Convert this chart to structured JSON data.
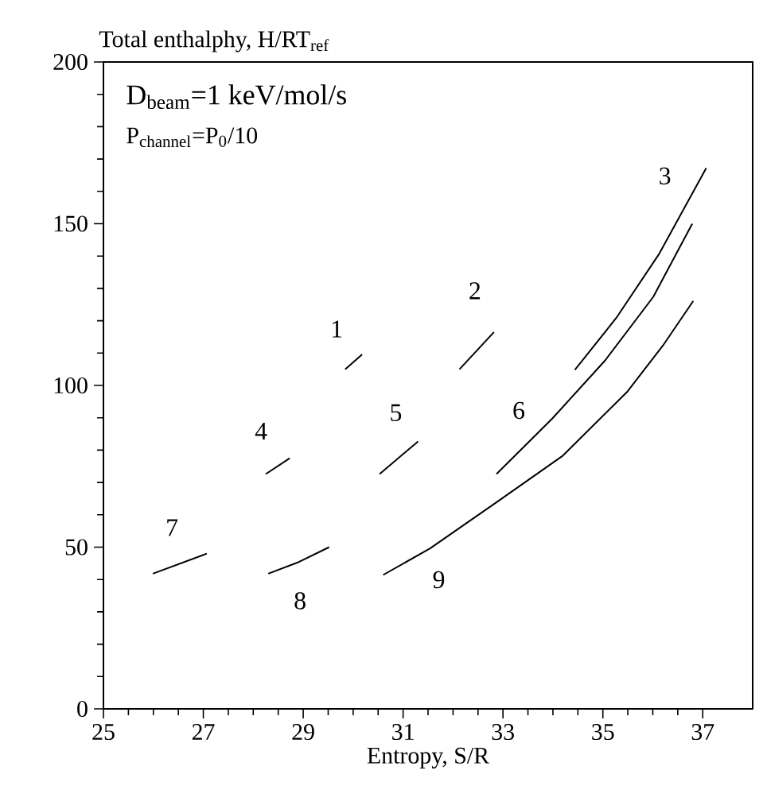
{
  "chart_data": {
    "type": "line",
    "ylabel": "Total enthalphy, H/RT$_{ref}$",
    "xlabel": "Entropy, S/R",
    "xlim": [
      25,
      38
    ],
    "ylim": [
      0,
      200
    ],
    "xticks": [
      25,
      27,
      29,
      31,
      33,
      35,
      37
    ],
    "yticks": [
      0,
      50,
      100,
      150,
      200
    ],
    "series": [
      {
        "name": "1",
        "color": "#000000",
        "x": [
          29.84,
          30.18
        ],
        "values": [
          105.0,
          109.6
        ]
      },
      {
        "name": "2",
        "color": "#000000",
        "x": [
          32.13,
          32.82
        ],
        "values": [
          105.0,
          116.5
        ]
      },
      {
        "name": "3",
        "color": "#000000",
        "x": [
          34.44,
          35.27,
          36.12,
          37.07
        ],
        "values": [
          104.8,
          120.9,
          140.5,
          167.2
        ]
      },
      {
        "name": "4",
        "color": "#000000",
        "x": [
          28.25,
          28.73
        ],
        "values": [
          72.6,
          77.5
        ]
      },
      {
        "name": "5",
        "color": "#000000",
        "x": [
          30.53,
          31.3
        ],
        "values": [
          72.6,
          82.7
        ]
      },
      {
        "name": "6",
        "color": "#000000",
        "x": [
          32.87,
          33.99,
          35.05,
          36.01,
          36.79
        ],
        "values": [
          72.6,
          89.8,
          107.8,
          127.4,
          150.0
        ]
      },
      {
        "name": "7",
        "color": "#000000",
        "x": [
          25.99,
          27.07
        ],
        "values": [
          41.8,
          48.0
        ]
      },
      {
        "name": "8",
        "color": "#000000",
        "x": [
          28.3,
          28.88,
          29.52
        ],
        "values": [
          41.8,
          45.2,
          50.0
        ]
      },
      {
        "name": "9",
        "color": "#000000",
        "x": [
          30.6,
          31.54,
          32.92,
          34.2,
          35.48,
          36.22,
          36.81
        ],
        "values": [
          41.4,
          49.6,
          64.4,
          78.3,
          97.9,
          112.7,
          126.1
        ]
      }
    ],
    "annotations": [
      "D$_{beam}$=1  keV/mol/s",
      "P$_{channel}$=P$_{0}$/10"
    ]
  }
}
